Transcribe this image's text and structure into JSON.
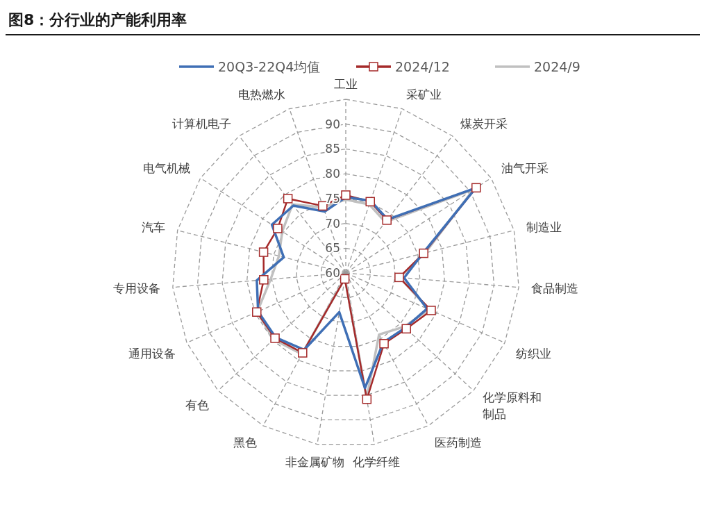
{
  "chart_data": {
    "type": "radar",
    "title": "图8：分行业的产能利用率",
    "categories": [
      "工业",
      "采矿业",
      "煤炭开采",
      "油气开采",
      "制造业",
      "食品制造",
      "纺织业",
      "化学原料和制品",
      "医药制造",
      "化学纤维",
      "非金属矿物",
      "黑色",
      "有色",
      "通用设备",
      "专用设备",
      "汽车",
      "电气机械",
      "计算机电子",
      "电热燃水"
    ],
    "series": [
      {
        "name": "20Q3-22Q4均值",
        "color": "#3f6fb5",
        "marker": "none",
        "values": [
          75.3,
          75.4,
          73.7,
          91.3,
          76.0,
          71.8,
          77.9,
          76.3,
          75.9,
          83.5,
          68.0,
          77.6,
          79.2,
          79.3,
          78.0,
          72.9,
          77.8,
          77.2,
          73.1
        ]
      },
      {
        "name": "2024/12",
        "color": "#a52a2a",
        "marker": "square",
        "values": [
          75.7,
          75.2,
          73.5,
          91.4,
          76.2,
          70.8,
          78.8,
          76.6,
          76.2,
          85.8,
          61.2,
          78.3,
          79.4,
          79.6,
          76.6,
          77.1,
          76.4,
          79.0,
          74.3
        ]
      },
      {
        "name": "2024/9",
        "color": "#c0c0c0",
        "marker": "none",
        "values": [
          74.8,
          74.6,
          73.0,
          90.8,
          76.5,
          70.9,
          78.3,
          76.0,
          74.1,
          85.6,
          61.0,
          78.6,
          79.8,
          79.5,
          75.2,
          73.9,
          75.3,
          77.5,
          74.0
        ]
      }
    ],
    "ylim": [
      60,
      95
    ],
    "yticks": [
      60,
      65,
      70,
      75,
      80,
      85,
      90
    ],
    "grid": true,
    "legend": "top"
  }
}
